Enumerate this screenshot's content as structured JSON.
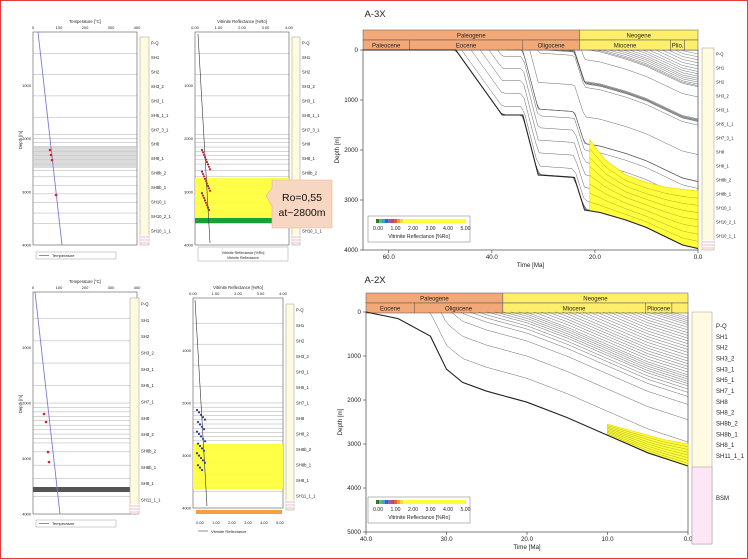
{
  "colors": {
    "frame": "#e43a3a",
    "paleogene": "#f2a877",
    "neogene": "#ffee6a",
    "neogene_light": "#fff6b0",
    "legend_strip": "#fffbe0",
    "maturity": "#ffff33",
    "maturity_top": "#ffd400",
    "temp_line": "#7b7bd8",
    "temp_points": "#e02020",
    "ro_points_a2x": "#2a3aa0",
    "green_band": "#19a03a",
    "callout": "#f7d6c2"
  },
  "a3x": {
    "title": "A-3X",
    "temp_axis_label": "Temperature [°C]",
    "temp_ticks": [
      "0",
      "100",
      "200",
      "300",
      "400"
    ],
    "depth_label": "Depth [m]",
    "depth_ticks": [
      "1000",
      "2000",
      "3000",
      "4000"
    ],
    "temp_legend": "Temperature",
    "ro_axis_label": "Vitrinite Reflectance [%Ro]",
    "ro_ticks": [
      "0.00",
      "1.00",
      "2.00",
      "3.00",
      "4.00"
    ],
    "ro_legend": [
      "Vitrinite Reflectance [%Ro]",
      "Vitrinite Reflectance"
    ],
    "callout": [
      "Ro=0,55",
      "at~2800m"
    ],
    "strip_labels": [
      "P-Q",
      "SH1",
      "SH2",
      "SH3_2",
      "SH3_1",
      "SH5_1_1",
      "SH7_3_1",
      "SH8",
      "SH8_1",
      "SH8b_2",
      "SH8b_1",
      "SH10_1",
      "SH10_2_1",
      "SH10_1_1"
    ]
  },
  "a2x": {
    "title": "A-2X",
    "temp_axis_label": "Temperature [°C]",
    "temp_ticks": [
      "0",
      "100",
      "200",
      "300",
      "400"
    ],
    "depth_label": "Depth [m]",
    "depth_ticks": [
      "1000",
      "2000",
      "3000",
      "4000"
    ],
    "temp_legend": "Temperature",
    "ro_axis_label": "Vitrinite Reflectance [%Ro]",
    "ro_ticks": [
      "0.00",
      "1.00",
      "2.00",
      "3.00",
      "4.00"
    ],
    "ro_ticks_bottom": [
      "0.00",
      "1.00",
      "2.00",
      "3.00",
      "4.00",
      "5.00"
    ],
    "ro_legend": "Vitrinite Reflectance",
    "strip_labels": [
      "P-Q",
      "SH1",
      "SH2",
      "SH3_2",
      "SH3_1",
      "SH5_1",
      "SH7_1",
      "SH8",
      "SH8_2",
      "SH8b_2",
      "SH8b_1",
      "SH8_1",
      "SH11_1_1"
    ]
  },
  "chart_data": [
    {
      "type": "line",
      "title": "A-3X",
      "xlabel": "Time [Ma]",
      "ylabel": "Depth [m]",
      "xlim": [
        65,
        0
      ],
      "ylim": [
        4000,
        0
      ],
      "x_ticks": [
        "60.0",
        "40.0",
        "20.0",
        "0.0"
      ],
      "y_ticks": [
        "0",
        "1000",
        "2000",
        "3000",
        "4000"
      ],
      "timescale": {
        "periods": [
          {
            "name": "Paleogene",
            "start": 65,
            "end": 23
          },
          {
            "name": "Neogene",
            "start": 23,
            "end": 0
          }
        ],
        "epochs": [
          {
            "name": "Paleocene",
            "start": 65,
            "end": 56
          },
          {
            "name": "Eocene",
            "start": 56,
            "end": 34
          },
          {
            "name": "Oligocene",
            "start": 34,
            "end": 23
          },
          {
            "name": "Miocene",
            "start": 23,
            "end": 5.3
          },
          {
            "name": "Plio.",
            "start": 5.3,
            "end": 2.6
          },
          {
            "name": "",
            "start": 2.6,
            "end": 0
          }
        ]
      },
      "legend": {
        "label": "Vitrinite Reflectance [%Ro]",
        "ticks": [
          "0.00",
          "1.00",
          "2.00",
          "3.00",
          "4.00",
          "5.00"
        ],
        "placement": "bottom-left"
      },
      "basement_curve": [
        [
          65,
          0
        ],
        [
          47,
          0
        ],
        [
          38,
          1300
        ],
        [
          34,
          1300
        ],
        [
          31,
          2500
        ],
        [
          24,
          2550
        ],
        [
          22,
          3200
        ],
        [
          19,
          3250
        ],
        [
          14,
          3400
        ],
        [
          10,
          3550
        ],
        [
          6,
          3750
        ],
        [
          3,
          3900
        ],
        [
          0,
          3970
        ]
      ],
      "ro_zone": {
        "top_curve": [
          [
            21,
            1800
          ],
          [
            18,
            2200
          ],
          [
            14,
            2500
          ],
          [
            10,
            2650
          ],
          [
            6,
            2750
          ],
          [
            2,
            2800
          ],
          [
            0,
            2820
          ]
        ],
        "ro_value": 0.55
      },
      "well_profile": {
        "temperature": {
          "xlim": [
            0,
            400
          ],
          "points": [
            [
              15,
              0
            ],
            [
              105,
              4000
            ]
          ],
          "measured": [
            [
              80,
              2100
            ],
            [
              85,
              2200
            ],
            [
              90,
              2350
            ],
            [
              100,
              3000
            ]
          ]
        },
        "vitrinite": {
          "points": [
            [
              0.3,
              100
            ],
            [
              0.4,
              1500
            ],
            [
              0.5,
              2300
            ],
            [
              0.55,
              2800
            ],
            [
              0.65,
              3300
            ]
          ]
        }
      }
    },
    {
      "type": "line",
      "title": "A-2X",
      "xlabel": "Time [Ma]",
      "ylabel": "Depth [m]",
      "xlim": [
        40,
        0
      ],
      "ylim": [
        5000,
        0
      ],
      "x_ticks": [
        "40.0",
        "30.0",
        "20.0",
        "10.0",
        "0.0"
      ],
      "y_ticks": [
        "0",
        "1000",
        "2000",
        "3000",
        "4000",
        "5000"
      ],
      "timescale": {
        "periods": [
          {
            "name": "Paleogene",
            "start": 40,
            "end": 23
          },
          {
            "name": "Neogene",
            "start": 23,
            "end": 0
          }
        ],
        "epochs": [
          {
            "name": "Eocene",
            "start": 40,
            "end": 34
          },
          {
            "name": "Oligocene",
            "start": 34,
            "end": 23
          },
          {
            "name": "Miocene",
            "start": 23,
            "end": 5.3
          },
          {
            "name": "Pliocene",
            "start": 5.3,
            "end": 2
          },
          {
            "name": "",
            "start": 2,
            "end": 0
          }
        ]
      },
      "legend": {
        "label": "Vitrinite Reflectance [%Ro]",
        "ticks": [
          "0.00",
          "1.00",
          "2.00",
          "3.00",
          "4.00",
          "5.00"
        ],
        "placement": "bottom-left"
      },
      "basement_curve": [
        [
          40,
          0
        ],
        [
          36,
          150
        ],
        [
          32,
          550
        ],
        [
          30,
          1300
        ],
        [
          28,
          1600
        ],
        [
          25,
          1800
        ],
        [
          20,
          2050
        ],
        [
          15,
          2400
        ],
        [
          10,
          2800
        ],
        [
          5,
          3200
        ],
        [
          0,
          3500
        ]
      ],
      "ro_zone": {
        "top_curve": [
          [
            10,
            2550
          ],
          [
            6,
            2750
          ],
          [
            3,
            2900
          ],
          [
            0,
            3000
          ]
        ]
      },
      "well_profile": {
        "temperature": {
          "xlim": [
            0,
            400
          ],
          "points": [
            [
              5,
              0
            ],
            [
              110,
              4000
            ]
          ],
          "measured": [
            [
              60,
              2250
            ],
            [
              65,
              2500
            ],
            [
              75,
              3000
            ],
            [
              80,
              3150
            ]
          ]
        },
        "vitrinite": {
          "points": [
            [
              0.35,
              1000
            ],
            [
              0.45,
              2300
            ],
            [
              0.55,
              2700
            ],
            [
              0.7,
              3100
            ]
          ]
        }
      }
    }
  ]
}
